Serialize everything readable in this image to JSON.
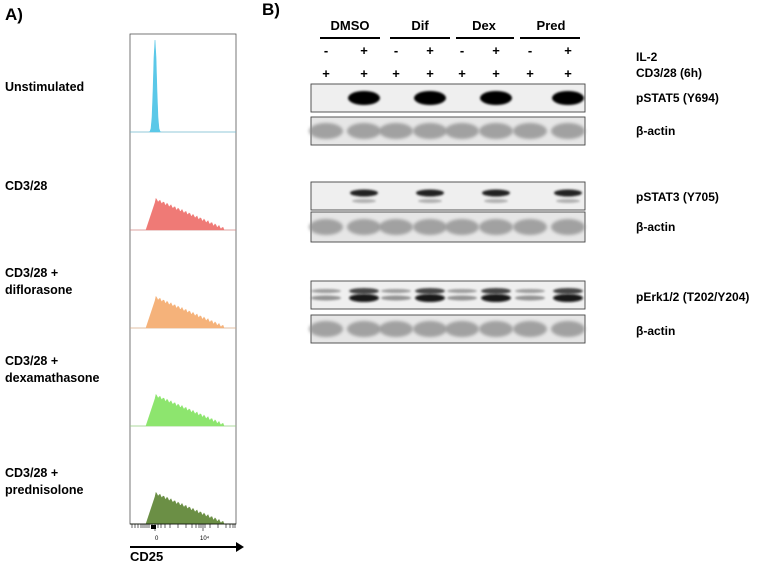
{
  "panel_a": {
    "letter": "A)",
    "rows": [
      {
        "label_lines": [
          "Unstimulated"
        ],
        "color": "#5bc8e8"
      },
      {
        "label_lines": [
          "CD3/28"
        ],
        "color": "#ef7a76"
      },
      {
        "label_lines": [
          "CD3/28 +",
          "diflorasone"
        ],
        "color": "#f5b27a"
      },
      {
        "label_lines": [
          "CD3/28 +",
          "dexamathasone"
        ],
        "color": "#8de56e"
      },
      {
        "label_lines": [
          "CD3/28 +",
          "prednisolone"
        ],
        "color": "#6b8f45"
      }
    ],
    "ticks": [
      "0",
      "10⁴"
    ],
    "axis_label": "CD25"
  },
  "panel_b": {
    "letter": "B)",
    "groups": [
      "DMSO",
      "Dif",
      "Dex",
      "Pred"
    ],
    "il2_signs": [
      "-",
      "+",
      "-",
      "+",
      "-",
      "+",
      "-",
      "+"
    ],
    "cd3_signs": [
      "+",
      "+",
      "+",
      "+",
      "+",
      "+",
      "+",
      "+"
    ],
    "condition_labels": [
      "IL-2",
      "CD3/28 (6h)"
    ],
    "blots": [
      {
        "label": "pSTAT5 (Y694)",
        "kind": "pstat5"
      },
      {
        "label": "β-actin",
        "kind": "actin"
      },
      {
        "label": "pSTAT3 (Y705)",
        "kind": "pstat3"
      },
      {
        "label": "β-actin",
        "kind": "actin"
      },
      {
        "label": "pErk1/2 (T202/Y204)",
        "kind": "perk"
      },
      {
        "label": "β-actin",
        "kind": "actin"
      }
    ]
  }
}
